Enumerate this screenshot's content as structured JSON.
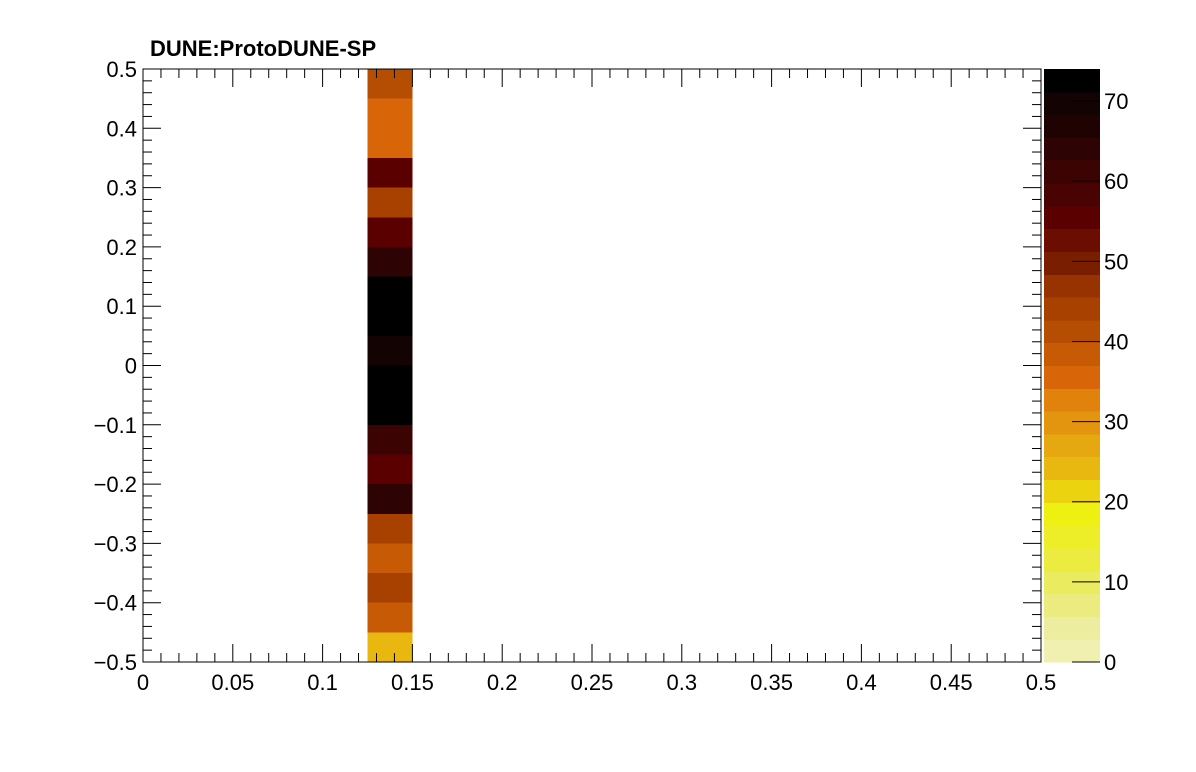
{
  "chart_data": {
    "type": "heatmap",
    "title": "DUNE:ProtoDUNE-SP",
    "xlabel": "",
    "ylabel": "",
    "xlim": [
      0,
      0.5
    ],
    "ylim": [
      -0.5,
      0.5
    ],
    "x_ticks": [
      {
        "value": 0,
        "label": "0"
      },
      {
        "value": 0.05,
        "label": "0.05"
      },
      {
        "value": 0.1,
        "label": "0.1"
      },
      {
        "value": 0.15,
        "label": "0.15"
      },
      {
        "value": 0.2,
        "label": "0.2"
      },
      {
        "value": 0.25,
        "label": "0.25"
      },
      {
        "value": 0.3,
        "label": "0.3"
      },
      {
        "value": 0.35,
        "label": "0.35"
      },
      {
        "value": 0.4,
        "label": "0.4"
      },
      {
        "value": 0.45,
        "label": "0.45"
      },
      {
        "value": 0.5,
        "label": "0.5"
      }
    ],
    "y_ticks": [
      {
        "value": 0.5,
        "label": "0.5"
      },
      {
        "value": 0.4,
        "label": "0.4"
      },
      {
        "value": 0.3,
        "label": "0.3"
      },
      {
        "value": 0.2,
        "label": "0.2"
      },
      {
        "value": 0.1,
        "label": "0.1"
      },
      {
        "value": 0,
        "label": "0"
      },
      {
        "value": -0.1,
        "label": "−0.1"
      },
      {
        "value": -0.2,
        "label": "−0.2"
      },
      {
        "value": -0.3,
        "label": "−0.3"
      },
      {
        "value": -0.4,
        "label": "−0.4"
      },
      {
        "value": -0.5,
        "label": "−0.5"
      }
    ],
    "grid": false,
    "column_x_range": [
      0.125,
      0.15
    ],
    "y_bin_count": 20,
    "y_bin_width": 0.05,
    "cells": [
      {
        "y_low": -0.5,
        "y_high": -0.45,
        "value": 25
      },
      {
        "y_low": -0.45,
        "y_high": -0.4,
        "value": 39
      },
      {
        "y_low": -0.4,
        "y_high": -0.35,
        "value": 43
      },
      {
        "y_low": -0.35,
        "y_high": -0.3,
        "value": 39
      },
      {
        "y_low": -0.3,
        "y_high": -0.25,
        "value": 43
      },
      {
        "y_low": -0.25,
        "y_high": -0.2,
        "value": 63
      },
      {
        "y_low": -0.2,
        "y_high": -0.15,
        "value": 55
      },
      {
        "y_low": -0.15,
        "y_high": -0.1,
        "value": 62
      },
      {
        "y_low": -0.1,
        "y_high": -0.05,
        "value": 73
      },
      {
        "y_low": -0.05,
        "y_high": 0.0,
        "value": 73
      },
      {
        "y_low": 0.0,
        "y_high": 0.05,
        "value": 70
      },
      {
        "y_low": 0.05,
        "y_high": 0.1,
        "value": 73
      },
      {
        "y_low": 0.1,
        "y_high": 0.15,
        "value": 73
      },
      {
        "y_low": 0.15,
        "y_high": 0.2,
        "value": 63
      },
      {
        "y_low": 0.2,
        "y_high": 0.25,
        "value": 55
      },
      {
        "y_low": 0.25,
        "y_high": 0.3,
        "value": 43
      },
      {
        "y_low": 0.3,
        "y_high": 0.35,
        "value": 55
      },
      {
        "y_low": 0.35,
        "y_high": 0.4,
        "value": 36
      },
      {
        "y_low": 0.4,
        "y_high": 0.45,
        "value": 36
      },
      {
        "y_low": 0.45,
        "y_high": 0.5,
        "value": 40
      }
    ],
    "colorbar": {
      "range": [
        0,
        74
      ],
      "ticks": [
        {
          "value": 0,
          "label": "0"
        },
        {
          "value": 10,
          "label": "10"
        },
        {
          "value": 20,
          "label": "20"
        },
        {
          "value": 30,
          "label": "30"
        },
        {
          "value": 40,
          "label": "40"
        },
        {
          "value": 50,
          "label": "50"
        },
        {
          "value": 60,
          "label": "60"
        },
        {
          "value": 70,
          "label": "70"
        }
      ],
      "levels": [
        "#f0f0b0",
        "#ededa0",
        "#ebeb80",
        "#ebeb60",
        "#ebeb40",
        "#eded28",
        "#edf010",
        "#ebd310",
        "#e8b810",
        "#e5a810",
        "#e39510",
        "#e0820c",
        "#d86608",
        "#c75a05",
        "#b54d02",
        "#a84000",
        "#963300",
        "#7a1e00",
        "#6b0d00",
        "#5a0000",
        "#4a0303",
        "#3c0303",
        "#2e0303",
        "#1f0303",
        "#140303",
        "#000000"
      ]
    }
  }
}
